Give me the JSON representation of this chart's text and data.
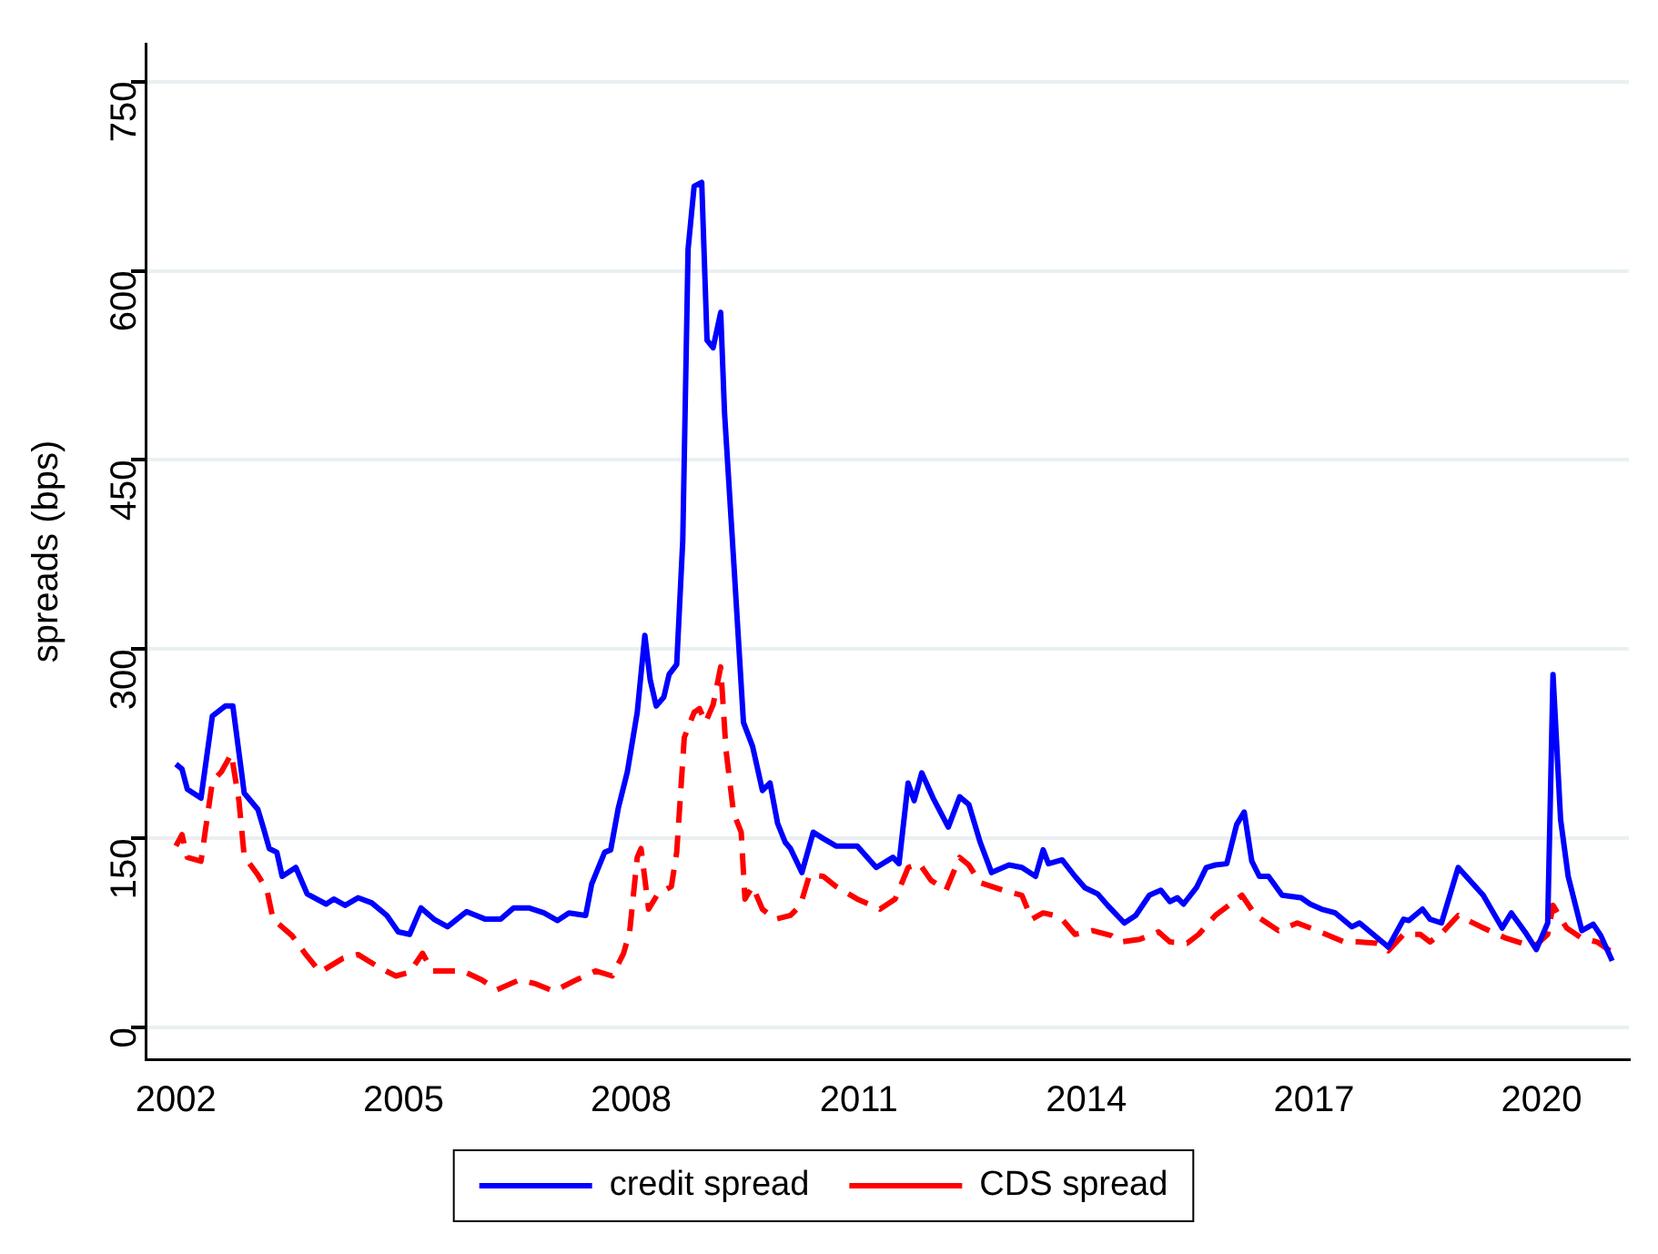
{
  "chart_data": {
    "type": "line",
    "ylabel": "spreads (bps)",
    "xlim": [
      2001.6,
      2021.15
    ],
    "xticks": [
      2002,
      2005,
      2008,
      2011,
      2014,
      2017,
      2020
    ],
    "ylim": [
      -25,
      780
    ],
    "yticks": [
      0,
      150,
      300,
      450,
      600,
      750
    ],
    "grid": "y",
    "legend": "bottom",
    "marker": "none",
    "series": [
      {
        "name": "credit spread",
        "color": "#0000ff",
        "line_style": "solid",
        "x": [
          2002.0,
          2002.08,
          2002.15,
          2002.33,
          2002.48,
          2002.65,
          2002.75,
          2002.9,
          2003.08,
          2003.15,
          2003.23,
          2003.33,
          2003.4,
          2003.58,
          2003.73,
          2003.98,
          2004.08,
          2004.23,
          2004.4,
          2004.58,
          2004.78,
          2004.93,
          2005.08,
          2005.23,
          2005.4,
          2005.58,
          2005.83,
          2006.08,
          2006.28,
          2006.45,
          2006.65,
          2006.85,
          2007.03,
          2007.18,
          2007.4,
          2007.48,
          2007.65,
          2007.73,
          2007.83,
          2007.95,
          2008.08,
          2008.18,
          2008.25,
          2008.33,
          2008.43,
          2008.5,
          2008.6,
          2008.68,
          2008.75,
          2008.83,
          2008.93,
          2009.0,
          2009.08,
          2009.18,
          2009.23,
          2009.35,
          2009.48,
          2009.6,
          2009.73,
          2009.83,
          2009.93,
          2010.03,
          2010.1,
          2010.25,
          2010.4,
          2010.53,
          2010.7,
          2010.98,
          2011.23,
          2011.45,
          2011.53,
          2011.65,
          2011.73,
          2011.83,
          2011.98,
          2012.18,
          2012.33,
          2012.45,
          2012.6,
          2012.75,
          2012.98,
          2013.15,
          2013.33,
          2013.43,
          2013.5,
          2013.68,
          2013.85,
          2013.98,
          2014.15,
          2014.28,
          2014.5,
          2014.65,
          2014.83,
          2014.98,
          2015.1,
          2015.2,
          2015.28,
          2015.45,
          2015.58,
          2015.7,
          2015.85,
          2015.98,
          2016.08,
          2016.18,
          2016.28,
          2016.4,
          2016.58,
          2016.83,
          2016.95,
          2017.1,
          2017.28,
          2017.5,
          2017.6,
          2017.78,
          2017.98,
          2018.18,
          2018.25,
          2018.43,
          2018.53,
          2018.68,
          2018.9,
          2019.23,
          2019.48,
          2019.6,
          2019.78,
          2019.93,
          2020.08,
          2020.15,
          2020.25,
          2020.35,
          2020.53,
          2020.68,
          2020.78,
          2020.93
        ],
        "values": [
          209,
          205,
          189,
          182,
          247,
          255,
          255,
          186,
          173,
          159,
          142,
          139,
          120,
          127,
          106,
          98,
          102,
          97,
          103,
          99,
          89,
          76,
          74,
          95,
          86,
          80,
          92,
          86,
          86,
          95,
          95,
          91,
          85,
          91,
          89,
          114,
          139,
          141,
          174,
          203,
          250,
          311,
          276,
          255,
          262,
          280,
          288,
          386,
          617,
          667,
          670,
          545,
          539,
          567,
          488,
          371,
          242,
          223,
          188,
          194,
          162,
          147,
          142,
          123,
          155,
          150,
          144,
          144,
          127,
          135,
          130,
          194,
          180,
          202,
          182,
          159,
          183,
          177,
          147,
          123,
          129,
          127,
          120,
          141,
          130,
          133,
          120,
          111,
          106,
          97,
          83,
          89,
          105,
          109,
          100,
          103,
          98,
          111,
          127,
          129,
          130,
          161,
          171,
          132,
          120,
          120,
          105,
          103,
          98,
          94,
          91,
          80,
          83,
          74,
          64,
          86,
          85,
          94,
          86,
          83,
          127,
          105,
          79,
          91,
          76,
          62,
          83,
          280,
          165,
          120,
          77,
          82,
          73,
          53
        ]
      },
      {
        "name": "CDS spread",
        "color": "#ff0000",
        "line_style": "dashed",
        "x": [
          2002.0,
          2002.08,
          2002.15,
          2002.33,
          2002.48,
          2002.6,
          2002.73,
          2002.83,
          2002.9,
          2003.08,
          2003.2,
          2003.28,
          2003.53,
          2003.7,
          2003.9,
          2004.2,
          2004.4,
          2004.7,
          2004.9,
          2005.08,
          2005.25,
          2005.38,
          2005.78,
          2006.03,
          2006.23,
          2006.53,
          2006.73,
          2006.98,
          2007.28,
          2007.53,
          2007.75,
          2007.9,
          2007.98,
          2008.08,
          2008.13,
          2008.23,
          2008.35,
          2008.53,
          2008.6,
          2008.7,
          2008.83,
          2008.9,
          2008.98,
          2009.08,
          2009.18,
          2009.25,
          2009.35,
          2009.45,
          2009.5,
          2009.6,
          2009.73,
          2009.9,
          2010.1,
          2010.23,
          2010.35,
          2010.53,
          2010.7,
          2010.98,
          2011.28,
          2011.48,
          2011.65,
          2011.8,
          2011.95,
          2012.15,
          2012.33,
          2012.45,
          2012.6,
          2012.9,
          2013.15,
          2013.28,
          2013.43,
          2013.65,
          2013.85,
          2014.08,
          2014.33,
          2014.45,
          2014.7,
          2014.95,
          2015.1,
          2015.33,
          2015.48,
          2015.7,
          2015.9,
          2016.05,
          2016.23,
          2016.53,
          2016.78,
          2017.08,
          2017.4,
          2017.58,
          2017.83,
          2017.98,
          2018.18,
          2018.4,
          2018.53,
          2018.7,
          2018.9,
          2019.2,
          2019.53,
          2019.9,
          2020.08,
          2020.15,
          2020.33,
          2020.53,
          2020.73,
          2020.9
        ],
        "values": [
          144,
          153,
          135,
          132,
          195,
          203,
          217,
          180,
          136,
          121,
          109,
          86,
          73,
          59,
          44,
          55,
          58,
          47,
          41,
          44,
          59,
          45,
          45,
          38,
          30,
          38,
          35,
          29,
          38,
          45,
          41,
          59,
          76,
          135,
          142,
          94,
          106,
          112,
          139,
          230,
          250,
          253,
          242,
          256,
          286,
          220,
          170,
          155,
          102,
          112,
          94,
          86,
          89,
          97,
          121,
          120,
          112,
          102,
          94,
          102,
          127,
          130,
          117,
          109,
          135,
          129,
          115,
          109,
          105,
          86,
          91,
          88,
          74,
          77,
          73,
          68,
          70,
          76,
          68,
          67,
          74,
          89,
          98,
          105,
          89,
          77,
          83,
          76,
          68,
          68,
          67,
          61,
          74,
          74,
          68,
          76,
          89,
          80,
          71,
          64,
          74,
          97,
          79,
          71,
          68,
          61
        ]
      }
    ]
  }
}
